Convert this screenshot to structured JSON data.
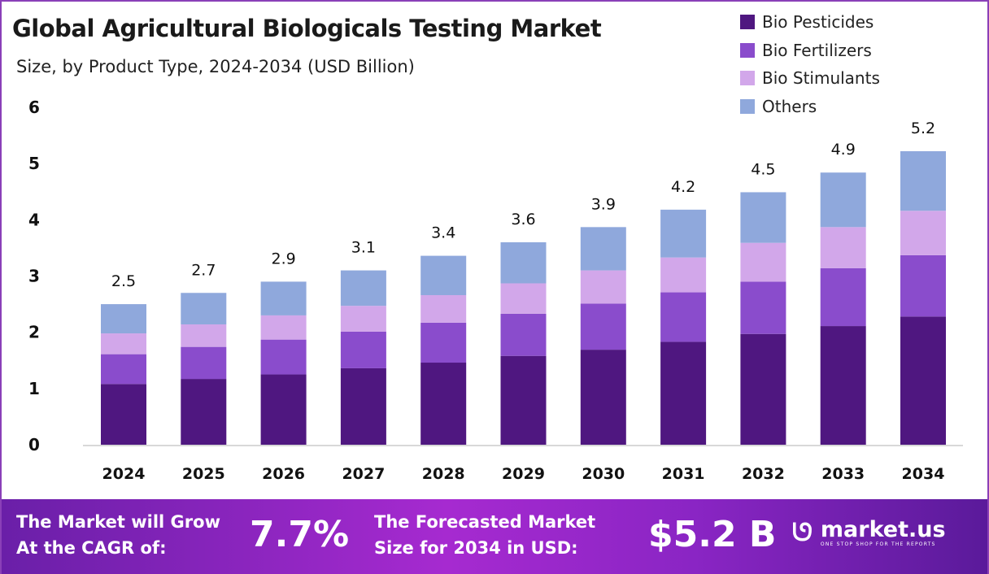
{
  "header": {
    "title": "Global Agricultural Biologicals Testing Market",
    "subtitle": "Size, by Product Type, 2024-2034 (USD Billion)"
  },
  "chart_data": {
    "type": "bar",
    "stacked": true,
    "title": "Global Agricultural Biologicals Testing Market",
    "subtitle": "Size, by Product Type, 2024-2034 (USD Billion)",
    "xlabel": "",
    "ylabel": "",
    "ylim": [
      0,
      6
    ],
    "yticks": [
      "0",
      "1",
      "2",
      "3",
      "4",
      "5",
      "6"
    ],
    "grid": false,
    "legend_position": "top-right",
    "categories": [
      "2024",
      "2025",
      "2026",
      "2027",
      "2028",
      "2029",
      "2030",
      "2031",
      "2032",
      "2033",
      "2034"
    ],
    "totals_labels": [
      "2.5",
      "2.7",
      "2.9",
      "3.1",
      "3.4",
      "3.6",
      "3.9",
      "4.2",
      "4.5",
      "4.9",
      "5.2"
    ],
    "series": [
      {
        "name": "Bio Pesticides",
        "color": "#4f1780",
        "values": [
          1.08,
          1.17,
          1.25,
          1.36,
          1.46,
          1.58,
          1.69,
          1.83,
          1.97,
          2.11,
          2.28
        ]
      },
      {
        "name": "Bio Fertilizers",
        "color": "#8a4ccc",
        "values": [
          0.53,
          0.57,
          0.62,
          0.65,
          0.71,
          0.75,
          0.82,
          0.88,
          0.93,
          1.03,
          1.09
        ]
      },
      {
        "name": "Bio Stimulants",
        "color": "#d2a7ea",
        "values": [
          0.37,
          0.4,
          0.43,
          0.46,
          0.49,
          0.54,
          0.59,
          0.62,
          0.69,
          0.73,
          0.79
        ]
      },
      {
        "name": "Others",
        "color": "#8fa8dc",
        "values": [
          0.52,
          0.56,
          0.6,
          0.63,
          0.7,
          0.73,
          0.77,
          0.85,
          0.9,
          0.97,
          1.06
        ]
      }
    ]
  },
  "footer": {
    "cagr_label_line1": "The Market will Grow",
    "cagr_label_line2": "At the CAGR of:",
    "cagr_value": "7.7%",
    "forecast_label_line1": "The Forecasted Market",
    "forecast_label_line2": "Size for 2034 in USD:",
    "forecast_value": "$5.2 B",
    "logo_name": "market.us",
    "logo_tagline": "ONE STOP SHOP FOR THE REPORTS"
  }
}
